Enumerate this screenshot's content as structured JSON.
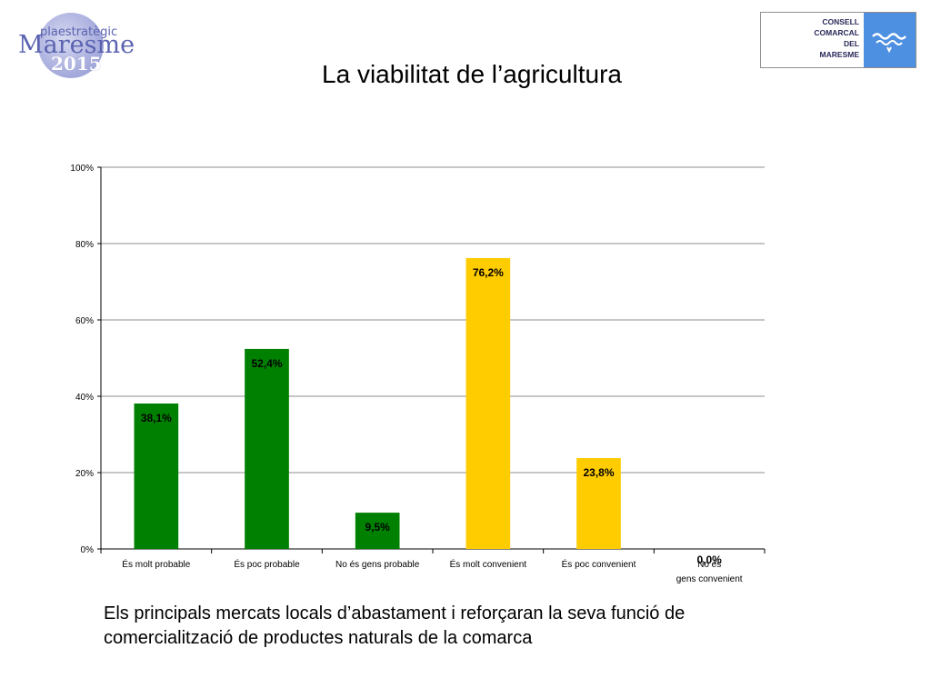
{
  "header": {
    "logo_left_small": "plaestratègic",
    "logo_left_big": "Maresme",
    "logo_left_year": "2015",
    "logo_right_lines": [
      "CONSELL",
      "COMARCAL",
      "DEL",
      "MARESME"
    ],
    "title": "La viabilitat de l’agricultura"
  },
  "caption": "Els principals mercats locals d’abastament i reforçaran la seva funció de comercialització de productes naturals de la comarca",
  "chart_data": {
    "type": "bar",
    "title": "",
    "xlabel": "",
    "ylabel": "",
    "ylim": [
      0,
      100
    ],
    "y_ticks": [
      "0%",
      "20%",
      "40%",
      "60%",
      "80%",
      "100%"
    ],
    "y_tick_values": [
      0,
      20,
      40,
      60,
      80,
      100
    ],
    "grid": true,
    "categories": [
      "És molt probable",
      "És poc probable",
      "No és gens probable",
      "És molt convenient",
      "És poc convenient",
      "No és gens convenient"
    ],
    "values": [
      38.1,
      52.4,
      9.5,
      76.2,
      23.8,
      0.0
    ],
    "data_labels": [
      "38,1%",
      "52,4%",
      "9,5%",
      "76,2%",
      "23,8%",
      "0,0%"
    ],
    "colors": [
      "#008000",
      "#008000",
      "#008000",
      "#ffcc00",
      "#ffcc00",
      "#ffcc00"
    ]
  }
}
